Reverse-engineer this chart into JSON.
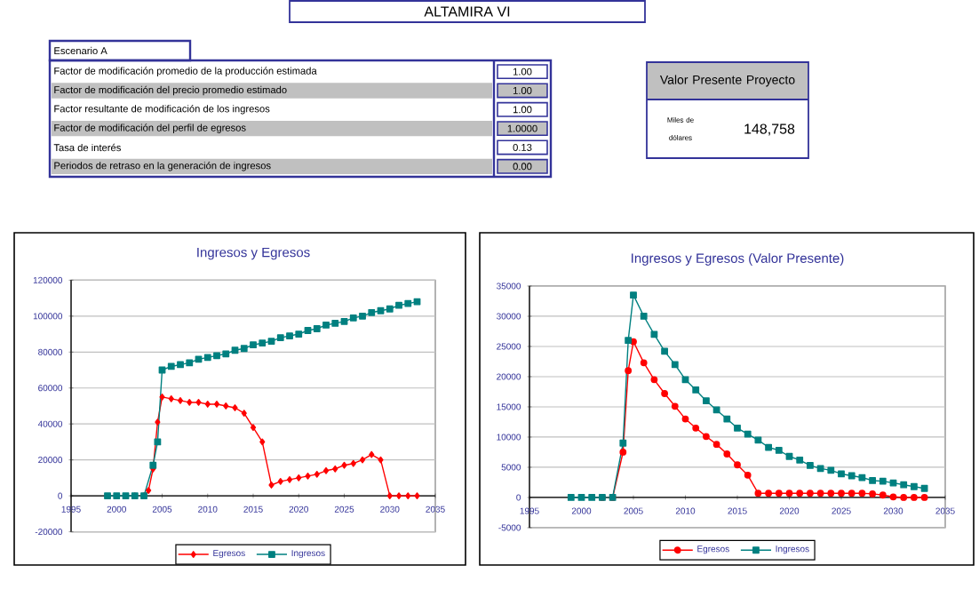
{
  "chart_data": [
    {
      "type": "other",
      "title": "ALTAMIRA VI",
      "subtitle": "Escenario A",
      "annotations": [
        "Factor de modificación promedio de la producción estimada",
        "1.00",
        "Factor de modificación del precio promedio estimado",
        "1.00",
        "Factor resultante de modificación de los ingresos",
        "1.00",
        "Factor de modificación del perfil de egresos",
        "1.0000",
        "Tasa de interés",
        "0.13",
        "Periodos de retraso en la generación de ingresos",
        "0.00"
      ]
    },
    {
      "type": "other",
      "title": "Valor Presente Proyecto",
      "annotations": [
        "Miles de dólares",
        "148,758"
      ]
    },
    {
      "type": "line",
      "title": "Ingresos y Egresos",
      "xlim": [
        1995,
        2035
      ],
      "xticks": [
        1995,
        2000,
        2005,
        2010,
        2015,
        2020,
        2025,
        2030,
        2035
      ],
      "ylim": [
        -20000,
        120000
      ],
      "yticks": [
        -20000,
        0,
        20000,
        40000,
        60000,
        80000,
        100000,
        120000
      ],
      "grid": "y",
      "legend": "bottom",
      "series": [
        {
          "name": "Egresos",
          "color": "#ff0000",
          "marker": "diamond",
          "x": [
            2002,
            2003,
            2003.5,
            2004,
            2004.5,
            2005,
            2006,
            2007,
            2008,
            2009,
            2010,
            2011,
            2012,
            2013,
            2014,
            2015,
            2016,
            2017,
            2018,
            2019,
            2020,
            2021,
            2022,
            2023,
            2024,
            2025,
            2026,
            2027,
            2028,
            2029,
            2030,
            2031,
            2032,
            2033
          ],
          "values": [
            0,
            0,
            3000,
            15000,
            41000,
            55000,
            54000,
            53000,
            52000,
            52000,
            51000,
            51000,
            50000,
            49000,
            46000,
            38000,
            30000,
            6000,
            8000,
            9000,
            10000,
            11000,
            12000,
            14000,
            15000,
            17000,
            18000,
            20000,
            23000,
            20000,
            0,
            0,
            0,
            0
          ]
        },
        {
          "name": "Ingresos",
          "color": "#008080",
          "marker": "square",
          "x": [
            1999,
            2000,
            2001,
            2002,
            2003,
            2004,
            2004.5,
            2005,
            2006,
            2007,
            2008,
            2009,
            2010,
            2011,
            2012,
            2013,
            2014,
            2015,
            2016,
            2017,
            2018,
            2019,
            2020,
            2021,
            2022,
            2023,
            2024,
            2025,
            2026,
            2027,
            2028,
            2029,
            2030,
            2031,
            2032,
            2033
          ],
          "values": [
            0,
            0,
            0,
            0,
            0,
            17000,
            30000,
            70000,
            72000,
            73000,
            74000,
            76000,
            77000,
            78000,
            79000,
            81000,
            82000,
            84000,
            85000,
            86000,
            88000,
            89000,
            90000,
            92000,
            93000,
            95000,
            96000,
            97000,
            99000,
            100000,
            102000,
            103000,
            104000,
            106000,
            107000,
            108000
          ]
        }
      ]
    },
    {
      "type": "line",
      "title": "Ingresos y Egresos (Valor Presente)",
      "xlim": [
        1995,
        2035
      ],
      "xticks": [
        1995,
        2000,
        2005,
        2010,
        2015,
        2020,
        2025,
        2030,
        2035
      ],
      "ylim": [
        -5000,
        35000
      ],
      "yticks": [
        -5000,
        0,
        5000,
        10000,
        15000,
        20000,
        25000,
        30000,
        35000
      ],
      "grid": "y",
      "legend": "bottom",
      "series": [
        {
          "name": "Egresos",
          "color": "#ff0000",
          "marker": "circle",
          "x": [
            2002,
            2003,
            2004,
            2004.5,
            2005,
            2006,
            2007,
            2008,
            2009,
            2010,
            2011,
            2012,
            2013,
            2014,
            2015,
            2016,
            2017,
            2018,
            2019,
            2020,
            2021,
            2022,
            2023,
            2024,
            2025,
            2026,
            2027,
            2028,
            2029,
            2030,
            2031,
            2032,
            2033
          ],
          "values": [
            0,
            0,
            7500,
            21000,
            25800,
            22300,
            19500,
            17200,
            15100,
            13000,
            11500,
            10100,
            8800,
            7200,
            5400,
            3700,
            700,
            700,
            700,
            700,
            700,
            700,
            700,
            700,
            700,
            700,
            700,
            600,
            400,
            100,
            0,
            0,
            0
          ]
        },
        {
          "name": "Ingresos",
          "color": "#008080",
          "marker": "square",
          "x": [
            1999,
            2000,
            2001,
            2002,
            2003,
            2004,
            2004.5,
            2005,
            2006,
            2007,
            2008,
            2009,
            2010,
            2011,
            2012,
            2013,
            2014,
            2015,
            2016,
            2017,
            2018,
            2019,
            2020,
            2021,
            2022,
            2023,
            2024,
            2025,
            2026,
            2027,
            2028,
            2029,
            2030,
            2031,
            2032,
            2033
          ],
          "values": [
            0,
            0,
            0,
            0,
            0,
            9000,
            26000,
            33500,
            30000,
            27000,
            24200,
            22000,
            19500,
            17800,
            16000,
            14500,
            13000,
            11500,
            10500,
            9500,
            8300,
            7800,
            6800,
            6200,
            5300,
            4800,
            4500,
            3900,
            3600,
            3300,
            2800,
            2700,
            2400,
            2100,
            1800,
            1500
          ]
        }
      ]
    }
  ]
}
